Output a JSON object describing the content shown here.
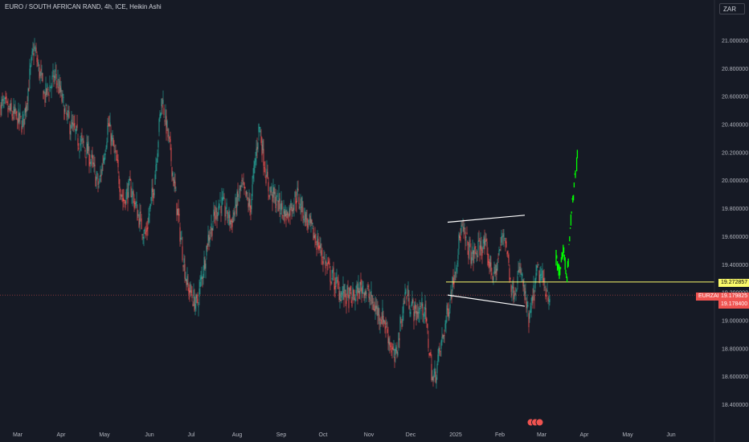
{
  "header": {
    "title": "EURO / SOUTH AFRICAN RAND, 4h, ICE, Heikin Ashi",
    "currency": "ZAR"
  },
  "price_labels": {
    "ticker": "EURZAR",
    "last": "19.179825",
    "bid": "19.178400",
    "level": "19.272857"
  },
  "colors": {
    "background": "#161a25",
    "up": "#26a69a",
    "down": "#ef5350",
    "level": "#fbfb6b",
    "projection": "#00ff00",
    "channel": "#ffffff",
    "current": "#ef5350"
  },
  "chart_data": {
    "type": "candlestick",
    "title": "EURO / SOUTH AFRICAN RAND, 4h, ICE, Heikin Ashi",
    "y_axis_side": "right",
    "ylim": [
      18.3,
      21.2
    ],
    "y_ticks": [
      "21.000000",
      "20.800000",
      "20.600000",
      "20.400000",
      "20.200000",
      "20.000000",
      "19.800000",
      "19.600000",
      "19.400000",
      "19.200000",
      "19.000000",
      "18.800000",
      "18.600000",
      "18.400000"
    ],
    "x_ticks": [
      "Mar",
      "Apr",
      "May",
      "Jun",
      "Jul",
      "Aug",
      "Sep",
      "Oct",
      "Nov",
      "Dec",
      "2025",
      "Feb",
      "Mar",
      "Apr",
      "May",
      "Jun"
    ],
    "price_path": [
      [
        "Mar",
        20.4
      ],
      [
        "Mar",
        20.95
      ],
      [
        "Mar",
        20.6
      ],
      [
        "Mar",
        20.75
      ],
      [
        "Apr",
        20.45
      ],
      [
        "Apr",
        20.3
      ],
      [
        "Apr",
        20.2
      ],
      [
        "Apr",
        19.95
      ],
      [
        "May",
        20.4
      ],
      [
        "May",
        20.15
      ],
      [
        "May",
        19.85
      ],
      [
        "May",
        19.95
      ],
      [
        "May",
        19.75
      ],
      [
        "May",
        19.6
      ],
      [
        "Jun",
        19.95
      ],
      [
        "Jun",
        20.6
      ],
      [
        "Jun",
        20.2
      ],
      [
        "Jun",
        19.7
      ],
      [
        "Jun",
        19.25
      ],
      [
        "Jul",
        19.1
      ],
      [
        "Jul",
        19.6
      ],
      [
        "Jul",
        19.85
      ],
      [
        "Jul",
        19.7
      ],
      [
        "Aug",
        19.95
      ],
      [
        "Aug",
        19.8
      ],
      [
        "Aug",
        20.4
      ],
      [
        "Aug",
        19.95
      ],
      [
        "Aug",
        19.85
      ],
      [
        "Sep",
        19.75
      ],
      [
        "Sep",
        19.9
      ],
      [
        "Sep",
        19.7
      ],
      [
        "Sep",
        19.55
      ],
      [
        "Oct",
        19.35
      ],
      [
        "Oct",
        19.2
      ],
      [
        "Oct",
        19.15
      ],
      [
        "Oct",
        19.25
      ],
      [
        "Nov",
        19.1
      ],
      [
        "Nov",
        19.0
      ],
      [
        "Nov",
        18.7
      ],
      [
        "Nov",
        19.2
      ],
      [
        "Dec",
        19.05
      ],
      [
        "Dec",
        19.1
      ],
      [
        "Dec",
        18.55
      ],
      [
        "Dec",
        18.85
      ],
      [
        "Dec",
        19.2
      ],
      [
        "2025",
        19.65
      ],
      [
        "2025",
        19.45
      ],
      [
        "2025",
        19.55
      ],
      [
        "2025",
        19.3
      ],
      [
        "Feb",
        19.65
      ],
      [
        "Feb",
        19.2
      ],
      [
        "Feb",
        19.35
      ],
      [
        "Feb",
        18.98
      ],
      [
        "Feb",
        19.35
      ],
      [
        "Mar",
        19.17
      ]
    ],
    "candles_start": "Mar",
    "candles_end": "Mar",
    "last_price": 19.179825,
    "bid_price": 19.1784,
    "horizontal_level": 19.272857,
    "channel": {
      "upper": [
        [
          "2025",
          19.7
        ],
        [
          "Mar",
          19.75
        ]
      ],
      "lower": [
        [
          "2025",
          19.18
        ],
        [
          "Mar",
          19.1
        ]
      ],
      "mid": [
        [
          "2025",
          19.27
        ],
        [
          "Mar",
          19.27
        ]
      ]
    },
    "projection": {
      "color": "#00ff00",
      "path": [
        [
          "Mar",
          19.45
        ],
        [
          "Mar",
          19.32
        ],
        [
          "Mar",
          19.5
        ],
        [
          "Apr",
          19.28
        ],
        [
          "Apr",
          19.7
        ],
        [
          "Apr",
          19.95
        ],
        [
          "Apr",
          20.2
        ]
      ]
    },
    "grid": false,
    "legend": "none"
  }
}
